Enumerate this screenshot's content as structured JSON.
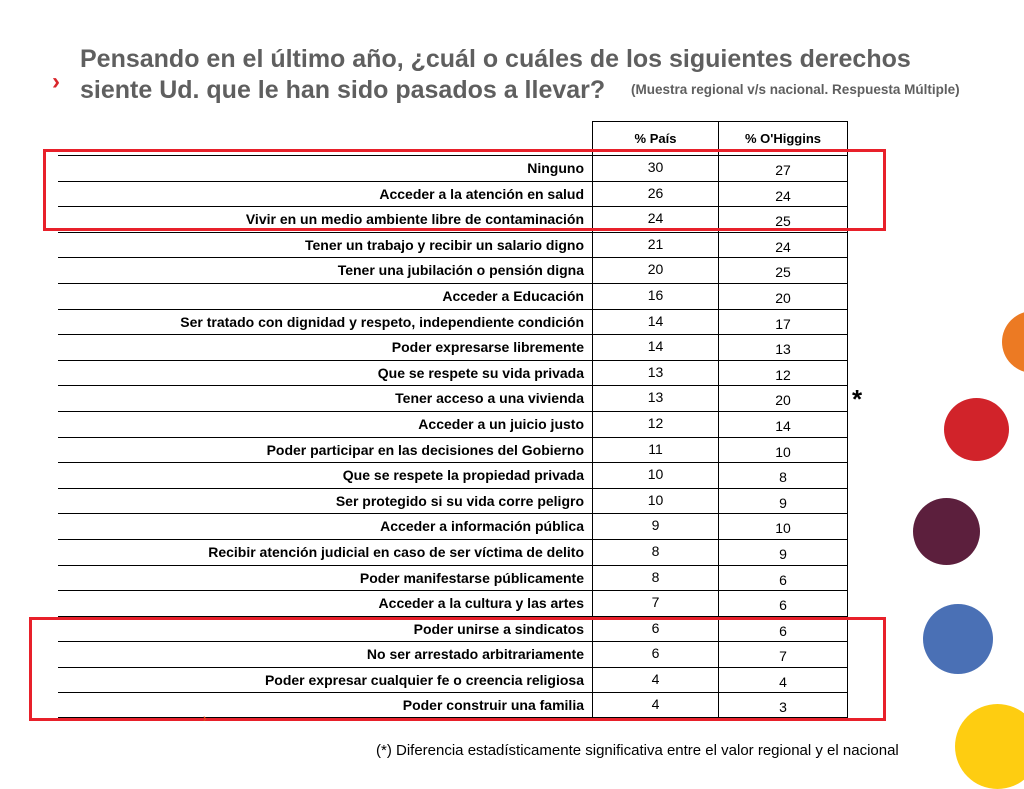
{
  "title": "Pensando en el último año, ¿cuál o cuáles de los siguientes derechos siente Ud. que le han sido pasados a llevar?",
  "subtitle": "(Muestra regional v/s nacional. Respuesta Múltiple)",
  "table": {
    "headers": [
      "% País",
      "% O'Higgins"
    ],
    "rows": [
      {
        "label": "Ninguno",
        "pais": "30",
        "region": "27"
      },
      {
        "label": "Acceder a la atención en salud",
        "pais": "26",
        "region": "24"
      },
      {
        "label": "Vivir en un medio ambiente libre de contaminación",
        "pais": "24",
        "region": "25"
      },
      {
        "label": "Tener un trabajo y recibir un salario digno",
        "pais": "21",
        "region": "24"
      },
      {
        "label": "Tener una jubilación o pensión digna",
        "pais": "20",
        "region": "25"
      },
      {
        "label": "Acceder a Educación",
        "pais": "16",
        "region": "20"
      },
      {
        "label": "Ser tratado con dignidad y respeto, independiente condición",
        "pais": "14",
        "region": "17"
      },
      {
        "label": "Poder expresarse libremente",
        "pais": "14",
        "region": "13"
      },
      {
        "label": "Que se respete su vida privada",
        "pais": "13",
        "region": "12"
      },
      {
        "label": "Tener acceso a una vivienda",
        "pais": "13",
        "region": "20"
      },
      {
        "label": "Acceder a un juicio justo",
        "pais": "12",
        "region": "14"
      },
      {
        "label": "Poder participar en las decisiones del Gobierno",
        "pais": "11",
        "region": "10"
      },
      {
        "label": "Que se respete la propiedad privada",
        "pais": "10",
        "region": "8"
      },
      {
        "label": "Ser protegido si su vida corre peligro",
        "pais": "10",
        "region": "9"
      },
      {
        "label": "Acceder a información pública",
        "pais": "9",
        "region": "10"
      },
      {
        "label": "Recibir atención judicial en caso de ser víctima de delito",
        "pais": "8",
        "region": "9"
      },
      {
        "label": "Poder manifestarse públicamente",
        "pais": "8",
        "region": "6"
      },
      {
        "label": "Acceder a la cultura y las artes",
        "pais": "7",
        "region": "6"
      },
      {
        "label": "Poder unirse a sindicatos",
        "pais": "6",
        "region": "6"
      },
      {
        "label": "No ser arrestado arbitrariamente",
        "pais": "6",
        "region": "7"
      },
      {
        "label": "Poder expresar cualquier fe o creencia religiosa",
        "pais": "4",
        "region": "4"
      },
      {
        "label": "Poder construir una familia",
        "pais": "4",
        "region": "3"
      }
    ]
  },
  "asterisk": "*",
  "footnote": "(*) Diferencia estadísticamente significativa entre el valor regional y el nacional",
  "colors": {
    "highlight": "#e8202a",
    "title_text": "#5f5f5f",
    "dot_orange": "#ec7a23",
    "dot_red": "#d1232a",
    "dot_purple": "#5c1f3d",
    "dot_blue": "#4a70b5",
    "dot_yellow": "#fecd11"
  }
}
